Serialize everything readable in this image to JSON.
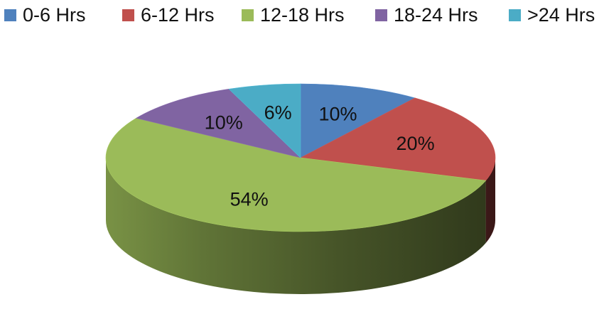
{
  "chart_data": {
    "type": "pie",
    "title": "",
    "legend_position": "top",
    "slices": [
      {
        "label": "0-6 Hrs",
        "value": 10,
        "value_label": "10%",
        "color": "#4F81BD"
      },
      {
        "label": "6-12 Hrs",
        "value": 20,
        "value_label": "20%",
        "color": "#C0504D"
      },
      {
        "label": "12-18 Hrs",
        "value": 54,
        "value_label": "54%",
        "color": "#9BBB59"
      },
      {
        "label": "18-24 Hrs",
        "value": 10,
        "value_label": "10%",
        "color": "#8064A2"
      },
      {
        "label": ">24 Hrs",
        "value": 6,
        "value_label": "6%",
        "color": "#4BACC6"
      }
    ]
  }
}
